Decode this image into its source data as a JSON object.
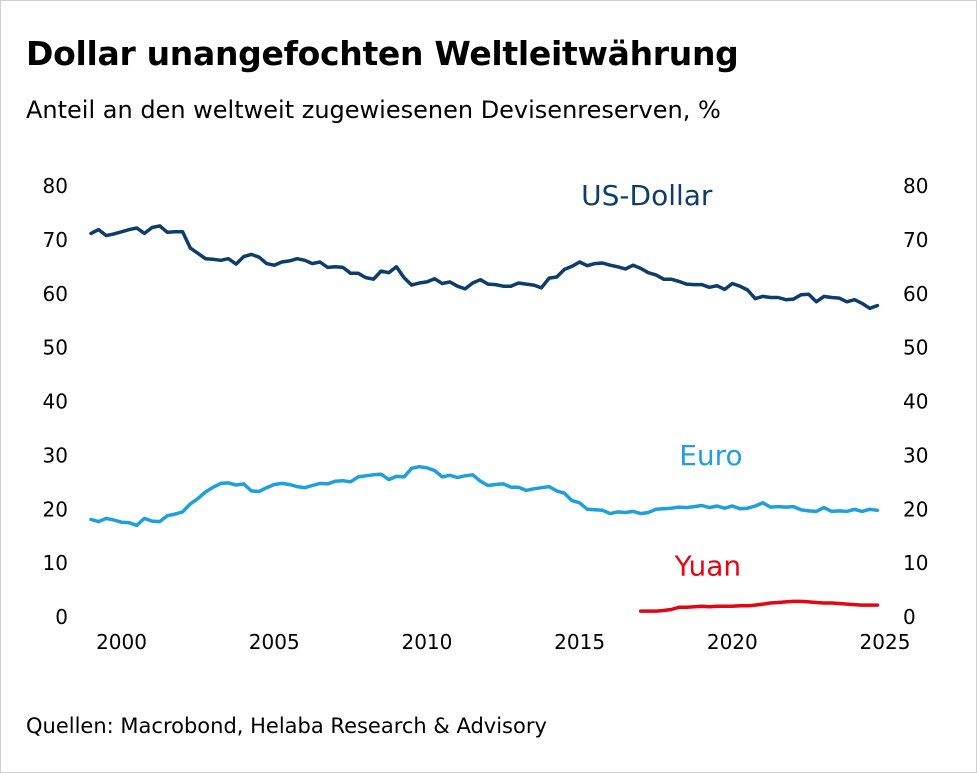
{
  "title": "Dollar unangefochten Weltleitwährung",
  "subtitle": "Anteil an den weltweit zugewiesenen Devisenreserven, %",
  "source": "Quellen: Macrobond, Helaba Research & Advisory",
  "chart_data": {
    "type": "line",
    "title": "Dollar unangefochten Weltleitwährung",
    "subtitle": "Anteil an den weltweit zugewiesenen Devisenreserven, %",
    "xlabel": "",
    "ylabel": "",
    "xlim": [
      1999,
      2025
    ],
    "ylim": [
      0,
      80
    ],
    "x_ticks": [
      2000,
      2005,
      2010,
      2015,
      2020,
      2025
    ],
    "y_ticks": [
      0,
      10,
      20,
      30,
      40,
      50,
      60,
      70,
      80
    ],
    "grid": false,
    "dual_y_axis_labels": true,
    "series": [
      {
        "name": "US-Dollar",
        "color": "#0d3d6b",
        "points": [
          [
            1999.0,
            71.2
          ],
          [
            1999.25,
            71.9
          ],
          [
            1999.5,
            70.8
          ],
          [
            1999.75,
            71.1
          ],
          [
            2000.0,
            71.5
          ],
          [
            2000.25,
            71.9
          ],
          [
            2000.5,
            72.2
          ],
          [
            2000.75,
            71.2
          ],
          [
            2001.0,
            72.3
          ],
          [
            2001.25,
            72.6
          ],
          [
            2001.5,
            71.4
          ],
          [
            2001.75,
            71.5
          ],
          [
            2002.0,
            71.5
          ],
          [
            2002.25,
            68.5
          ],
          [
            2002.5,
            67.5
          ],
          [
            2002.75,
            66.5
          ],
          [
            2003.0,
            66.4
          ],
          [
            2003.25,
            66.2
          ],
          [
            2003.5,
            66.5
          ],
          [
            2003.75,
            65.5
          ],
          [
            2004.0,
            66.9
          ],
          [
            2004.25,
            67.3
          ],
          [
            2004.5,
            66.8
          ],
          [
            2004.75,
            65.6
          ],
          [
            2005.0,
            65.3
          ],
          [
            2005.25,
            65.9
          ],
          [
            2005.5,
            66.1
          ],
          [
            2005.75,
            66.5
          ],
          [
            2006.0,
            66.2
          ],
          [
            2006.25,
            65.6
          ],
          [
            2006.5,
            65.9
          ],
          [
            2006.75,
            64.9
          ],
          [
            2007.0,
            65.0
          ],
          [
            2007.25,
            64.9
          ],
          [
            2007.5,
            63.8
          ],
          [
            2007.75,
            63.8
          ],
          [
            2008.0,
            63.0
          ],
          [
            2008.25,
            62.7
          ],
          [
            2008.5,
            64.2
          ],
          [
            2008.75,
            63.9
          ],
          [
            2009.0,
            65.0
          ],
          [
            2009.25,
            63.0
          ],
          [
            2009.5,
            61.6
          ],
          [
            2009.75,
            62.0
          ],
          [
            2010.0,
            62.2
          ],
          [
            2010.25,
            62.8
          ],
          [
            2010.5,
            61.9
          ],
          [
            2010.75,
            62.2
          ],
          [
            2011.0,
            61.4
          ],
          [
            2011.25,
            60.9
          ],
          [
            2011.5,
            62.0
          ],
          [
            2011.75,
            62.6
          ],
          [
            2012.0,
            61.8
          ],
          [
            2012.25,
            61.7
          ],
          [
            2012.5,
            61.4
          ],
          [
            2012.75,
            61.4
          ],
          [
            2013.0,
            62.0
          ],
          [
            2013.25,
            61.8
          ],
          [
            2013.5,
            61.6
          ],
          [
            2013.75,
            61.1
          ],
          [
            2014.0,
            62.9
          ],
          [
            2014.25,
            63.1
          ],
          [
            2014.5,
            64.5
          ],
          [
            2014.75,
            65.1
          ],
          [
            2015.0,
            65.9
          ],
          [
            2015.25,
            65.2
          ],
          [
            2015.5,
            65.6
          ],
          [
            2015.75,
            65.7
          ],
          [
            2016.0,
            65.3
          ],
          [
            2016.25,
            65.0
          ],
          [
            2016.5,
            64.6
          ],
          [
            2016.75,
            65.3
          ],
          [
            2017.0,
            64.7
          ],
          [
            2017.25,
            63.9
          ],
          [
            2017.5,
            63.5
          ],
          [
            2017.75,
            62.7
          ],
          [
            2018.0,
            62.7
          ],
          [
            2018.25,
            62.3
          ],
          [
            2018.5,
            61.8
          ],
          [
            2018.75,
            61.7
          ],
          [
            2019.0,
            61.7
          ],
          [
            2019.25,
            61.2
          ],
          [
            2019.5,
            61.5
          ],
          [
            2019.75,
            60.8
          ],
          [
            2020.0,
            61.9
          ],
          [
            2020.25,
            61.4
          ],
          [
            2020.5,
            60.7
          ],
          [
            2020.75,
            59.1
          ],
          [
            2021.0,
            59.5
          ],
          [
            2021.25,
            59.3
          ],
          [
            2021.5,
            59.3
          ],
          [
            2021.75,
            58.9
          ],
          [
            2022.0,
            59.0
          ],
          [
            2022.25,
            59.8
          ],
          [
            2022.5,
            59.9
          ],
          [
            2022.75,
            58.5
          ],
          [
            2023.0,
            59.5
          ],
          [
            2023.25,
            59.3
          ],
          [
            2023.5,
            59.2
          ],
          [
            2023.75,
            58.5
          ],
          [
            2024.0,
            58.9
          ],
          [
            2024.25,
            58.2
          ],
          [
            2024.5,
            57.3
          ],
          [
            2024.75,
            57.8
          ]
        ]
      },
      {
        "name": "Euro",
        "color": "#1ea0dc",
        "points": [
          [
            1999.0,
            18.1
          ],
          [
            1999.25,
            17.7
          ],
          [
            1999.5,
            18.3
          ],
          [
            1999.75,
            18.0
          ],
          [
            2000.0,
            17.6
          ],
          [
            2000.25,
            17.5
          ],
          [
            2000.5,
            17.0
          ],
          [
            2000.75,
            18.3
          ],
          [
            2001.0,
            17.8
          ],
          [
            2001.25,
            17.7
          ],
          [
            2001.5,
            18.8
          ],
          [
            2001.75,
            19.1
          ],
          [
            2002.0,
            19.5
          ],
          [
            2002.25,
            21.0
          ],
          [
            2002.5,
            22.0
          ],
          [
            2002.75,
            23.2
          ],
          [
            2003.0,
            24.1
          ],
          [
            2003.25,
            24.8
          ],
          [
            2003.5,
            24.9
          ],
          [
            2003.75,
            24.5
          ],
          [
            2004.0,
            24.7
          ],
          [
            2004.25,
            23.4
          ],
          [
            2004.5,
            23.3
          ],
          [
            2004.75,
            24.0
          ],
          [
            2005.0,
            24.6
          ],
          [
            2005.25,
            24.8
          ],
          [
            2005.5,
            24.6
          ],
          [
            2005.75,
            24.2
          ],
          [
            2006.0,
            24.0
          ],
          [
            2006.25,
            24.4
          ],
          [
            2006.5,
            24.8
          ],
          [
            2006.75,
            24.7
          ],
          [
            2007.0,
            25.2
          ],
          [
            2007.25,
            25.3
          ],
          [
            2007.5,
            25.1
          ],
          [
            2007.75,
            26.0
          ],
          [
            2008.0,
            26.2
          ],
          [
            2008.25,
            26.4
          ],
          [
            2008.5,
            26.5
          ],
          [
            2008.75,
            25.5
          ],
          [
            2009.0,
            26.1
          ],
          [
            2009.25,
            26.0
          ],
          [
            2009.5,
            27.6
          ],
          [
            2009.75,
            27.9
          ],
          [
            2010.0,
            27.7
          ],
          [
            2010.25,
            27.2
          ],
          [
            2010.5,
            26.0
          ],
          [
            2010.75,
            26.3
          ],
          [
            2011.0,
            25.9
          ],
          [
            2011.25,
            26.2
          ],
          [
            2011.5,
            26.4
          ],
          [
            2011.75,
            25.2
          ],
          [
            2012.0,
            24.4
          ],
          [
            2012.25,
            24.6
          ],
          [
            2012.5,
            24.7
          ],
          [
            2012.75,
            24.1
          ],
          [
            2013.0,
            24.1
          ],
          [
            2013.25,
            23.5
          ],
          [
            2013.5,
            23.8
          ],
          [
            2013.75,
            24.0
          ],
          [
            2014.0,
            24.2
          ],
          [
            2014.25,
            23.4
          ],
          [
            2014.5,
            23.0
          ],
          [
            2014.75,
            21.6
          ],
          [
            2015.0,
            21.2
          ],
          [
            2015.25,
            20.0
          ],
          [
            2015.5,
            19.9
          ],
          [
            2015.75,
            19.8
          ],
          [
            2016.0,
            19.2
          ],
          [
            2016.25,
            19.5
          ],
          [
            2016.5,
            19.4
          ],
          [
            2016.75,
            19.6
          ],
          [
            2017.0,
            19.2
          ],
          [
            2017.25,
            19.4
          ],
          [
            2017.5,
            20.0
          ],
          [
            2017.75,
            20.1
          ],
          [
            2018.0,
            20.2
          ],
          [
            2018.25,
            20.4
          ],
          [
            2018.5,
            20.3
          ],
          [
            2018.75,
            20.5
          ],
          [
            2019.0,
            20.7
          ],
          [
            2019.25,
            20.3
          ],
          [
            2019.5,
            20.6
          ],
          [
            2019.75,
            20.2
          ],
          [
            2020.0,
            20.6
          ],
          [
            2020.25,
            20.1
          ],
          [
            2020.5,
            20.2
          ],
          [
            2020.75,
            20.6
          ],
          [
            2021.0,
            21.2
          ],
          [
            2021.25,
            20.4
          ],
          [
            2021.5,
            20.5
          ],
          [
            2021.75,
            20.4
          ],
          [
            2022.0,
            20.5
          ],
          [
            2022.25,
            19.9
          ],
          [
            2022.5,
            19.7
          ],
          [
            2022.75,
            19.6
          ],
          [
            2023.0,
            20.3
          ],
          [
            2023.25,
            19.6
          ],
          [
            2023.5,
            19.7
          ],
          [
            2023.75,
            19.6
          ],
          [
            2024.0,
            20.0
          ],
          [
            2024.25,
            19.6
          ],
          [
            2024.5,
            20.0
          ],
          [
            2024.75,
            19.8
          ]
        ]
      },
      {
        "name": "Yuan",
        "color": "#e30613",
        "points": [
          [
            2017.0,
            1.1
          ],
          [
            2017.25,
            1.1
          ],
          [
            2017.5,
            1.1
          ],
          [
            2017.75,
            1.2
          ],
          [
            2018.0,
            1.4
          ],
          [
            2018.25,
            1.8
          ],
          [
            2018.5,
            1.8
          ],
          [
            2018.75,
            1.9
          ],
          [
            2019.0,
            2.0
          ],
          [
            2019.25,
            1.9
          ],
          [
            2019.5,
            2.0
          ],
          [
            2019.75,
            2.0
          ],
          [
            2020.0,
            2.0
          ],
          [
            2020.25,
            2.1
          ],
          [
            2020.5,
            2.1
          ],
          [
            2020.75,
            2.2
          ],
          [
            2021.0,
            2.4
          ],
          [
            2021.25,
            2.6
          ],
          [
            2021.5,
            2.7
          ],
          [
            2021.75,
            2.8
          ],
          [
            2022.0,
            2.9
          ],
          [
            2022.25,
            2.9
          ],
          [
            2022.5,
            2.8
          ],
          [
            2022.75,
            2.7
          ],
          [
            2023.0,
            2.6
          ],
          [
            2023.25,
            2.6
          ],
          [
            2023.5,
            2.5
          ],
          [
            2023.75,
            2.4
          ],
          [
            2024.0,
            2.3
          ],
          [
            2024.25,
            2.2
          ],
          [
            2024.5,
            2.2
          ],
          [
            2024.75,
            2.2
          ]
        ]
      }
    ],
    "labels": [
      {
        "text": "US-Dollar",
        "series": 0,
        "x": 2017.2,
        "y": 76.5
      },
      {
        "text": "Euro",
        "series": 1,
        "x": 2019.3,
        "y": 28.2
      },
      {
        "text": "Yuan",
        "series": 2,
        "x": 2019.2,
        "y": 7.7
      }
    ]
  }
}
